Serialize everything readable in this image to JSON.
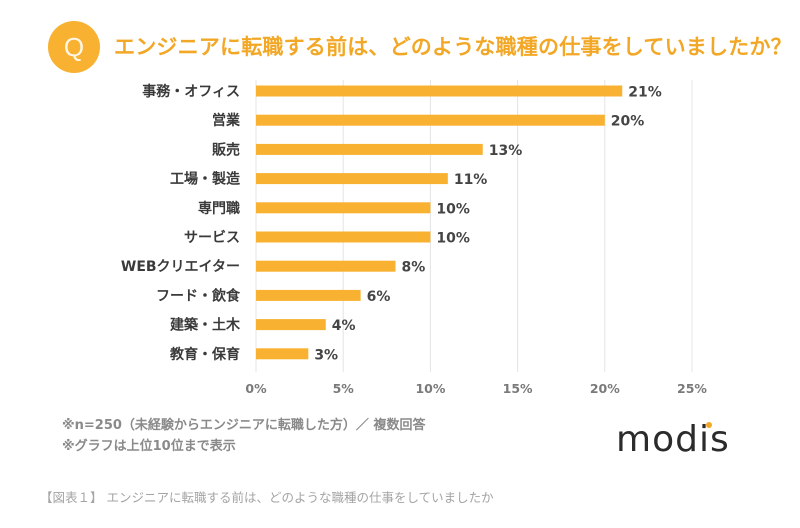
{
  "header": {
    "badge": "Q",
    "title": "エンジニアに転職する前は、どのような職種の仕事をしていましたか？"
  },
  "colors": {
    "accent": "#f8b131",
    "title": "#f2a826",
    "label": "#3a3a3a",
    "grid": "#e4e4e4"
  },
  "chart_data": {
    "type": "bar",
    "orientation": "horizontal",
    "title": "エンジニアに転職する前は、どのような職種の仕事をしていましたか？",
    "xlabel": "",
    "ylabel": "",
    "categories": [
      "事務・オフィス",
      "営業",
      "販売",
      "工場・製造",
      "専門職",
      "サービス",
      "WEBクリエイター",
      "フード・飲食",
      "建築・土木",
      "教育・保育"
    ],
    "values": [
      21,
      20,
      13,
      11,
      10,
      10,
      8,
      6,
      4,
      3
    ],
    "value_labels": [
      "21%",
      "20%",
      "13%",
      "11%",
      "10%",
      "10%",
      "8%",
      "6%",
      "4%",
      "3%"
    ],
    "unit": "%",
    "xlim": [
      0,
      25
    ],
    "x_ticks": [
      0,
      5,
      10,
      15,
      20,
      25
    ],
    "x_tick_labels": [
      "0%",
      "5%",
      "10%",
      "15%",
      "20%",
      "25%"
    ],
    "grid": true,
    "legend": "none"
  },
  "notes": [
    "※n=250（未経験からエンジニアに転職した方）／ 複数回答",
    "※グラフは上位10位まで表示"
  ],
  "logo": "modis",
  "caption": "【図表１】 エンジニアに転職する前は、どのような職種の仕事をしていましたか"
}
